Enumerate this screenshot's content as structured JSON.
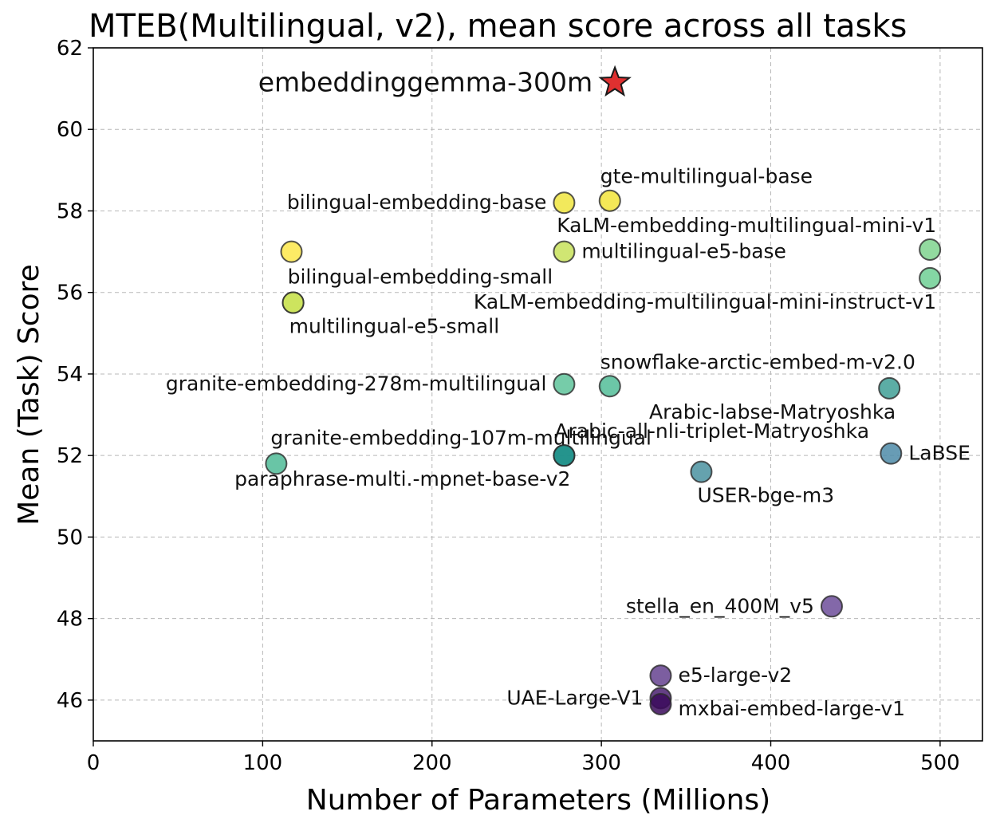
{
  "chart_data": {
    "type": "scatter",
    "title": "MTEB(Multilingual, v2), mean score across all tasks",
    "xlabel": "Number of Parameters (Millions)",
    "ylabel": "Mean (Task) Score",
    "xlim": [
      0,
      525
    ],
    "ylim": [
      45,
      62
    ],
    "xticks": [
      0,
      100,
      200,
      300,
      400,
      500
    ],
    "yticks": [
      46,
      48,
      50,
      52,
      54,
      56,
      58,
      60,
      62
    ],
    "grid": true,
    "colormap": "viridis",
    "highlight": {
      "name": "embeddinggemma-300m",
      "x": 308,
      "y": 61.15,
      "marker": "star",
      "color": "#e03030"
    },
    "points": [
      {
        "name": "gte-multilingual-base",
        "x": 305,
        "y": 58.25,
        "color": "#f2e43a",
        "label_pos": "above-right"
      },
      {
        "name": "bilingual-embedding-base",
        "x": 278,
        "y": 58.2,
        "color": "#f0e540",
        "label_pos": "left"
      },
      {
        "name": "",
        "x": 117,
        "y": 57.0,
        "color": "#fde84a",
        "label_pos": "none"
      },
      {
        "name": "multilingual-e5-base",
        "x": 278,
        "y": 57.0,
        "color": "#c8e25a",
        "label_pos": "right"
      },
      {
        "name": "KaLM-embedding-multilingual-mini-v1",
        "x": 494,
        "y": 57.05,
        "color": "#7fd48e",
        "label_pos": "above-left"
      },
      {
        "name": "KaLM-embedding-multilingual-mini-instruct-v1",
        "x": 494,
        "y": 56.35,
        "color": "#6fcf94",
        "label_pos": "below-left"
      },
      {
        "name": "bilingual-embedding-small",
        "x": 118,
        "y": 55.75,
        "color": "#cbe35a",
        "label_pos": "above"
      },
      {
        "name": "multilingual-e5-small",
        "x": 118,
        "y": 55.75,
        "color": "#cbe35a",
        "label_pos": "below"
      },
      {
        "name": "granite-embedding-278m-multilingual",
        "x": 278,
        "y": 53.75,
        "color": "#5ec39a",
        "label_pos": "left"
      },
      {
        "name": "snowflake-arctic-embed-m-v2.0",
        "x": 305,
        "y": 53.7,
        "color": "#52bd98",
        "label_pos": "above-right"
      },
      {
        "name": "Arabic-labse-Matryoshka",
        "x": 470,
        "y": 53.65,
        "color": "#3f9f95",
        "label_pos": "below-left"
      },
      {
        "name": "granite-embedding-107m-multilingual",
        "x": 108,
        "y": 51.8,
        "color": "#4fbb96",
        "label_pos": "above"
      },
      {
        "name": "Arabic-all-nli-triplet-Matryoshka",
        "x": 278,
        "y": 52.0,
        "color": "#2c9c93",
        "label_pos": "above-right"
      },
      {
        "name": "paraphrase-multi.-mpnet-base-v2",
        "x": 278,
        "y": 52.0,
        "color": "#1e8f8a",
        "label_pos": "below-left"
      },
      {
        "name": "LaBSE",
        "x": 471,
        "y": 52.05,
        "color": "#4e8ba8",
        "label_pos": "right"
      },
      {
        "name": "USER-bge-m3",
        "x": 359,
        "y": 51.6,
        "color": "#4a92a0",
        "label_pos": "below"
      },
      {
        "name": "stella_en_400M_v5",
        "x": 436,
        "y": 48.3,
        "color": "#6d4e9a",
        "label_pos": "left"
      },
      {
        "name": "e5-large-v2",
        "x": 335,
        "y": 46.6,
        "color": "#65428f",
        "label_pos": "right"
      },
      {
        "name": "UAE-Large-V1",
        "x": 335,
        "y": 46.05,
        "color": "#4a1f70",
        "label_pos": "left"
      },
      {
        "name": "mxbai-embed-large-v1",
        "x": 335,
        "y": 45.9,
        "color": "#3b0b5c",
        "label_pos": "right-below"
      }
    ]
  }
}
